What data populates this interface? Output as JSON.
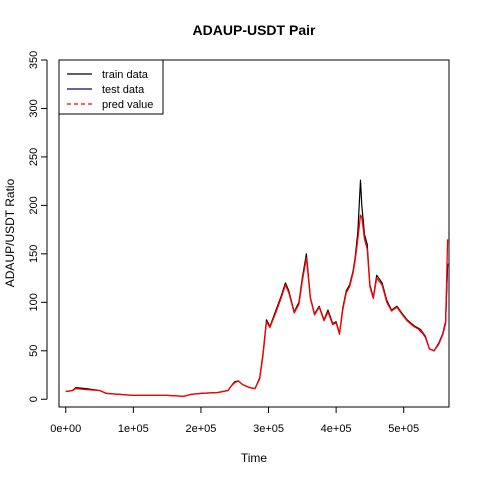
{
  "chart_data": {
    "type": "line",
    "title": "ADAUP-USDT Pair",
    "xlabel": "Time",
    "ylabel": "ADAUP/USDT Ratio",
    "xlim": [
      -10000,
      567000
    ],
    "ylim": [
      -8,
      350
    ],
    "xticks": [
      0,
      100000,
      200000,
      300000,
      400000,
      500000
    ],
    "xtick_labels": [
      "0e+00",
      "1e+05",
      "2e+05",
      "3e+05",
      "4e+05",
      "5e+05"
    ],
    "yticks": [
      0,
      50,
      100,
      150,
      200,
      250,
      300,
      350
    ],
    "ytick_labels": [
      "0",
      "50",
      "100",
      "150",
      "200",
      "250",
      "300",
      "350"
    ],
    "legend_position": "top-left",
    "grid": false,
    "series": [
      {
        "name": "train data",
        "color": "#000000",
        "style": "solid",
        "x": [
          0,
          10000,
          15000,
          30000,
          50000,
          60000,
          100000,
          150000,
          175000,
          185000,
          200000,
          225000,
          240000,
          245000,
          250000,
          255000,
          262000,
          272000,
          280000,
          287000,
          292000,
          297000,
          302000,
          310000,
          318000,
          325000,
          330000,
          338000,
          345000,
          350000,
          356000,
          362000,
          368000,
          375000,
          382000,
          388000,
          395000,
          400000,
          405000,
          410000,
          415000,
          420000,
          425000,
          428000,
          432000,
          436000,
          438000,
          442000,
          446000,
          450000,
          455000,
          460000,
          468000,
          475000,
          482000,
          490000,
          498000,
          505000,
          515000,
          525000,
          532000,
          538000,
          545000,
          552000,
          558000,
          562000,
          565000
        ],
        "y": [
          8,
          9,
          12,
          11,
          9,
          6,
          4,
          4,
          3,
          5,
          6,
          7,
          9,
          14,
          18,
          19,
          15,
          12,
          11,
          22,
          48,
          82,
          75,
          90,
          105,
          120,
          112,
          90,
          100,
          125,
          150,
          105,
          88,
          96,
          82,
          92,
          78,
          80,
          68,
          95,
          112,
          118,
          132,
          145,
          172,
          226,
          200,
          170,
          160,
          118,
          105,
          128,
          120,
          102,
          92,
          96,
          88,
          82,
          76,
          72,
          65,
          52,
          50,
          58,
          68,
          80,
          140
        ]
      },
      {
        "name": "test data",
        "color": "#00008b",
        "style": "solid",
        "x": [
          522000,
          532000,
          538000,
          545000,
          552000,
          558000,
          562000,
          565000
        ],
        "y": [
          72,
          65,
          52,
          50,
          58,
          68,
          80,
          140
        ]
      },
      {
        "name": "pred value",
        "color": "#ff0000",
        "style": "dashed",
        "x": [
          0,
          10000,
          15000,
          30000,
          50000,
          60000,
          100000,
          150000,
          175000,
          185000,
          200000,
          225000,
          240000,
          245000,
          250000,
          255000,
          262000,
          272000,
          280000,
          287000,
          292000,
          297000,
          302000,
          310000,
          318000,
          325000,
          330000,
          338000,
          345000,
          350000,
          356000,
          362000,
          368000,
          375000,
          382000,
          388000,
          395000,
          400000,
          405000,
          410000,
          415000,
          420000,
          425000,
          428000,
          432000,
          436000,
          438000,
          442000,
          446000,
          450000,
          455000,
          460000,
          468000,
          475000,
          482000,
          490000,
          498000,
          505000,
          515000,
          525000,
          532000,
          538000,
          545000,
          552000,
          558000,
          562000,
          565000
        ],
        "y": [
          8,
          9,
          11,
          10,
          9,
          6,
          4,
          4,
          3,
          5,
          6,
          7,
          9,
          14,
          17,
          19,
          15,
          12,
          11,
          21,
          46,
          80,
          74,
          88,
          103,
          118,
          110,
          89,
          98,
          122,
          146,
          104,
          87,
          95,
          81,
          90,
          77,
          79,
          67,
          93,
          110,
          116,
          130,
          142,
          165,
          190,
          188,
          165,
          155,
          116,
          104,
          125,
          118,
          100,
          91,
          95,
          87,
          81,
          75,
          71,
          64,
          52,
          50,
          57,
          67,
          78,
          165
        ]
      }
    ]
  }
}
